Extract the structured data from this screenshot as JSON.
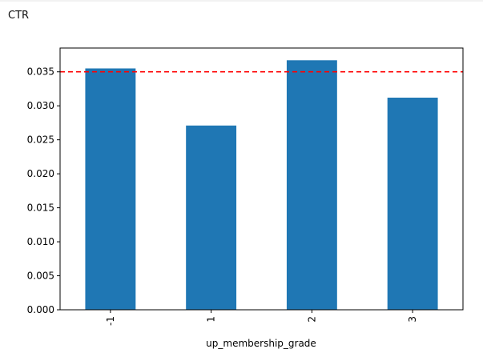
{
  "cell": {
    "output_text": "CTR"
  },
  "chart_data": {
    "type": "bar",
    "title": "",
    "xlabel": "up_membership_grade",
    "ylabel": "",
    "categories": [
      "-1",
      "1",
      "2",
      "3"
    ],
    "values": [
      0.0355,
      0.0271,
      0.0367,
      0.0312
    ],
    "ylim": [
      0,
      0.0385
    ],
    "yticks": [
      "0.000",
      "0.005",
      "0.010",
      "0.015",
      "0.020",
      "0.025",
      "0.030",
      "0.035"
    ],
    "reference_line": {
      "value": 0.035,
      "style": "dashed"
    },
    "grid": false,
    "colors": {
      "bar": "#1f77b4",
      "reference_line": "#ff0000",
      "axes": "#000000"
    }
  }
}
